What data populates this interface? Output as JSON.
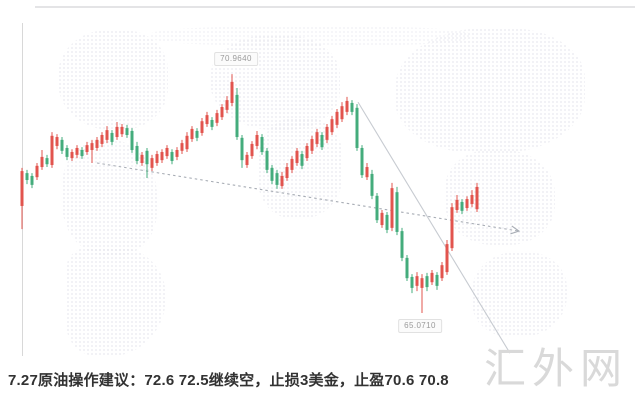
{
  "chart": {
    "high_label": "70.9640",
    "low_label": "65.0710"
  },
  "commentary": "7.27原油操作建议：72.6 72.5继续空，止损3美金，止盈70.6 70.8",
  "watermark": "汇外网",
  "chart_data": {
    "type": "candlestick",
    "title": "",
    "up_color": "#e2544e",
    "down_color": "#44ac7c",
    "legend": [],
    "grid": false,
    "y_range": [
      64.0,
      71.2
    ],
    "x_count": 92,
    "annotations": [
      {
        "text": "70.9640",
        "value": 70.964,
        "kind": "swing-high"
      },
      {
        "text": "65.0710",
        "value": 65.071,
        "kind": "swing-low"
      }
    ],
    "candles": [
      [
        67.71,
        68.65,
        67.14,
        68.57
      ],
      [
        68.52,
        68.6,
        68.25,
        68.35
      ],
      [
        68.45,
        68.52,
        68.15,
        68.23
      ],
      [
        68.42,
        68.77,
        68.35,
        68.7
      ],
      [
        68.67,
        69.09,
        68.6,
        68.92
      ],
      [
        68.89,
        68.97,
        68.67,
        68.74
      ],
      [
        68.72,
        69.53,
        68.65,
        69.44
      ],
      [
        69.19,
        69.48,
        69.11,
        69.41
      ],
      [
        69.34,
        69.41,
        68.99,
        69.07
      ],
      [
        69.14,
        69.21,
        68.84,
        68.92
      ],
      [
        68.89,
        69.11,
        68.82,
        69.04
      ],
      [
        68.97,
        69.21,
        68.89,
        69.14
      ],
      [
        69.09,
        69.16,
        68.87,
        68.94
      ],
      [
        69.04,
        69.29,
        68.97,
        69.21
      ],
      [
        69.09,
        69.34,
        68.77,
        69.26
      ],
      [
        69.14,
        69.41,
        69.07,
        69.34
      ],
      [
        69.24,
        69.53,
        69.16,
        69.46
      ],
      [
        69.34,
        69.68,
        69.26,
        69.58
      ],
      [
        69.51,
        69.58,
        69.21,
        69.29
      ],
      [
        69.41,
        69.78,
        69.34,
        69.66
      ],
      [
        69.48,
        69.73,
        69.41,
        69.66
      ],
      [
        69.63,
        69.71,
        69.39,
        69.46
      ],
      [
        69.56,
        69.63,
        69.02,
        69.09
      ],
      [
        69.19,
        69.29,
        68.74,
        68.82
      ],
      [
        68.77,
        69.04,
        68.7,
        68.97
      ],
      [
        69.07,
        69.14,
        68.4,
        68.74
      ],
      [
        68.65,
        68.97,
        68.57,
        68.89
      ],
      [
        68.77,
        69.07,
        68.7,
        68.99
      ],
      [
        68.84,
        69.11,
        68.77,
        69.04
      ],
      [
        68.94,
        69.21,
        68.87,
        69.14
      ],
      [
        69.04,
        69.11,
        68.74,
        68.82
      ],
      [
        68.92,
        69.16,
        68.84,
        69.09
      ],
      [
        69.07,
        69.34,
        68.99,
        69.26
      ],
      [
        69.11,
        69.53,
        69.04,
        69.44
      ],
      [
        69.36,
        69.68,
        69.29,
        69.61
      ],
      [
        69.56,
        69.63,
        69.31,
        69.39
      ],
      [
        69.51,
        69.88,
        69.44,
        69.8
      ],
      [
        69.73,
        70.03,
        69.66,
        69.95
      ],
      [
        69.83,
        69.9,
        69.58,
        69.66
      ],
      [
        69.76,
        70.08,
        69.68,
        70.0
      ],
      [
        69.9,
        70.22,
        69.83,
        70.15
      ],
      [
        70.08,
        70.42,
        70.0,
        70.32
      ],
      [
        70.25,
        70.96,
        70.17,
        70.77
      ],
      [
        70.45,
        70.62,
        69.34,
        69.41
      ],
      [
        69.39,
        69.46,
        68.65,
        68.84
      ],
      [
        68.72,
        69.04,
        68.65,
        68.97
      ],
      [
        68.94,
        69.31,
        68.87,
        69.24
      ],
      [
        69.19,
        69.56,
        69.11,
        69.46
      ],
      [
        69.41,
        69.48,
        68.97,
        69.04
      ],
      [
        69.07,
        69.14,
        68.52,
        68.6
      ],
      [
        68.65,
        68.72,
        68.25,
        68.33
      ],
      [
        68.52,
        68.6,
        68.13,
        68.23
      ],
      [
        68.2,
        68.55,
        68.13,
        68.45
      ],
      [
        68.4,
        68.77,
        68.33,
        68.67
      ],
      [
        68.6,
        68.94,
        68.52,
        68.87
      ],
      [
        68.77,
        69.14,
        68.7,
        69.07
      ],
      [
        68.99,
        69.07,
        68.62,
        68.7
      ],
      [
        68.89,
        69.26,
        68.82,
        69.19
      ],
      [
        69.07,
        69.44,
        68.99,
        69.36
      ],
      [
        69.24,
        69.61,
        69.16,
        69.53
      ],
      [
        69.46,
        69.53,
        69.09,
        69.16
      ],
      [
        69.34,
        69.73,
        69.26,
        69.66
      ],
      [
        69.53,
        69.93,
        69.46,
        69.85
      ],
      [
        69.71,
        70.1,
        69.63,
        70.03
      ],
      [
        69.85,
        70.27,
        69.78,
        70.17
      ],
      [
        70.03,
        70.4,
        69.95,
        70.3
      ],
      [
        70.25,
        70.32,
        69.95,
        70.03
      ],
      [
        70.13,
        70.22,
        69.07,
        69.14
      ],
      [
        69.14,
        69.21,
        68.4,
        68.47
      ],
      [
        68.42,
        68.77,
        68.35,
        68.67
      ],
      [
        68.5,
        68.6,
        67.88,
        67.96
      ],
      [
        67.96,
        68.03,
        67.29,
        67.36
      ],
      [
        67.24,
        67.61,
        67.17,
        67.54
      ],
      [
        67.49,
        67.56,
        67.04,
        67.12
      ],
      [
        67.17,
        68.28,
        67.09,
        68.15
      ],
      [
        68.05,
        68.18,
        66.99,
        67.07
      ],
      [
        67.09,
        67.17,
        66.35,
        66.43
      ],
      [
        66.43,
        66.5,
        65.86,
        65.93
      ],
      [
        65.96,
        66.03,
        65.56,
        65.69
      ],
      [
        65.74,
        66.08,
        65.61,
        65.98
      ],
      [
        65.69,
        66.03,
        65.07,
        65.93
      ],
      [
        65.98,
        66.06,
        65.61,
        65.71
      ],
      [
        65.83,
        66.13,
        65.76,
        66.06
      ],
      [
        66.01,
        66.08,
        65.64,
        65.74
      ],
      [
        65.93,
        66.33,
        65.86,
        66.25
      ],
      [
        66.08,
        66.87,
        66.01,
        66.77
      ],
      [
        66.67,
        67.78,
        66.6,
        67.68
      ],
      [
        67.61,
        67.98,
        67.54,
        67.86
      ],
      [
        67.81,
        67.88,
        67.51,
        67.59
      ],
      [
        67.66,
        67.95,
        67.59,
        67.88
      ],
      [
        67.76,
        68.1,
        67.68,
        67.98
      ],
      [
        67.63,
        68.28,
        67.56,
        68.18
      ]
    ],
    "trendlines": [
      {
        "style": "dashed",
        "arrow_end": true,
        "from": {
          "bar": 15.0,
          "price": 68.77
        },
        "to": {
          "bar": 99.4,
          "price": 67.09
        }
      },
      {
        "style": "solid",
        "arrow_end": false,
        "from": {
          "bar": 67.2,
          "price": 70.27
        },
        "to": {
          "bar": 97.6,
          "price": 64.08
        }
      }
    ]
  }
}
